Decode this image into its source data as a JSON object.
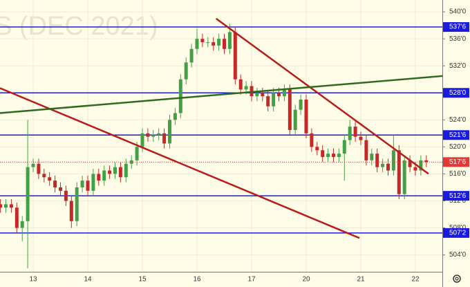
{
  "chart_data": {
    "type": "candlestick",
    "watermark": "S (DEC 2021)",
    "categories": [
      null,
      null,
      null,
      null,
      null,
      null,
      "13",
      null,
      null,
      null,
      null,
      null,
      null,
      null,
      null,
      null,
      "14",
      null,
      null,
      null,
      null,
      null,
      null,
      null,
      null,
      null,
      "15",
      null,
      null,
      null,
      null,
      null,
      null,
      null,
      null,
      null,
      "16",
      null,
      null,
      null,
      null,
      null,
      null,
      null,
      null,
      null,
      "17",
      null,
      null,
      null,
      null,
      null,
      null,
      null,
      null,
      null,
      "20",
      null,
      null,
      null,
      null,
      null,
      null,
      null,
      null,
      null,
      "21",
      null,
      null,
      null,
      null,
      null,
      null,
      null,
      null,
      null,
      "22",
      null,
      null
    ],
    "open": [
      511.5,
      511,
      511.5,
      511,
      508,
      509,
      517,
      517.5,
      516,
      515.5,
      515,
      514,
      513.5,
      512,
      509,
      514,
      515,
      513.5,
      516,
      515,
      516.5,
      516,
      517,
      515.5,
      517.5,
      518,
      520,
      522,
      521.5,
      521.75,
      522,
      520.5,
      524,
      525,
      530,
      532.5,
      534.5,
      536,
      535.5,
      535.5,
      535,
      536,
      534.5,
      537,
      530,
      528.5,
      529,
      527.5,
      528,
      527.5,
      526,
      528,
      527.5,
      528.5,
      522.5,
      525.5,
      527,
      522,
      520,
      519.5,
      518.5,
      519,
      518.5,
      519,
      521,
      523,
      521.5,
      521,
      518,
      519,
      517,
      517.5,
      516.5,
      519.5,
      513,
      518,
      517,
      516.5,
      518
    ],
    "high": [
      512.25,
      512.25,
      512.25,
      511.75,
      509.75,
      524,
      518.25,
      518.25,
      516.75,
      516.25,
      515.75,
      514.75,
      514.25,
      512.75,
      514.75,
      515.75,
      515.75,
      516.75,
      516.75,
      517.25,
      517.25,
      517.75,
      517.75,
      518.25,
      518.75,
      520.75,
      522.75,
      522.75,
      522.5,
      522.75,
      522.75,
      524.75,
      525.75,
      530.75,
      533.25,
      535.25,
      537.5,
      536.75,
      536.25,
      536.25,
      536.75,
      536.75,
      538.25,
      537.75,
      530.75,
      529.75,
      529.75,
      528.75,
      528.75,
      528.25,
      528.75,
      528.75,
      529.25,
      529.25,
      526.25,
      527.75,
      527.75,
      522.75,
      520.75,
      520.25,
      519.75,
      519.75,
      519.75,
      521.75,
      524,
      523.75,
      522.25,
      521.75,
      519.75,
      519.75,
      518.25,
      518.25,
      521.75,
      520.25,
      518.75,
      518.75,
      517.75,
      518.75,
      518.75
    ],
    "low": [
      510.25,
      510.25,
      510.25,
      507.25,
      506,
      502,
      516.25,
      515.25,
      514.75,
      514.25,
      513.25,
      512.75,
      511.25,
      508,
      508.25,
      513.25,
      512.75,
      512.75,
      514.25,
      514.25,
      515.25,
      515.25,
      514.75,
      514.75,
      516.75,
      517.25,
      519.25,
      520.75,
      520.75,
      521,
      519.75,
      519.75,
      523.25,
      524.25,
      529.25,
      531.75,
      533.75,
      534.75,
      534.75,
      534.25,
      534.25,
      533.75,
      533.75,
      529.25,
      527.75,
      527.75,
      526.75,
      526.75,
      526.75,
      525.25,
      525.25,
      526.75,
      526.75,
      521.75,
      521.75,
      524.75,
      521.25,
      519.25,
      518.75,
      517.75,
      517.75,
      517.75,
      517.75,
      515,
      520.25,
      520.75,
      520.25,
      517.25,
      517.25,
      516.25,
      516.25,
      515.75,
      515.75,
      512.25,
      512.25,
      516.25,
      515.75,
      515.75,
      517
    ],
    "close": [
      511,
      511.5,
      511,
      508,
      509,
      517,
      517.5,
      516,
      515.5,
      515,
      514,
      513.5,
      512,
      509,
      514,
      515,
      513.5,
      516,
      515,
      516.5,
      516,
      517,
      515.5,
      517.5,
      518,
      520,
      522,
      521.5,
      521.75,
      522,
      520.5,
      524,
      525,
      530,
      532.5,
      534.5,
      536,
      535.5,
      535.5,
      535,
      536,
      534.5,
      537,
      530,
      528.5,
      529,
      527.5,
      528,
      527.5,
      526,
      528,
      527.5,
      528.5,
      522.5,
      525.5,
      527,
      522,
      520,
      519.5,
      518.5,
      519,
      518.5,
      519,
      521,
      523,
      521.5,
      521,
      518,
      519,
      517,
      517.5,
      516.5,
      519.5,
      513,
      518,
      517,
      516.5,
      518,
      517.75
    ],
    "up_color": "#43a047",
    "down_color": "#c62828",
    "ylim": [
      501.5,
      541.75
    ],
    "yticks": [
      {
        "value": 504,
        "label": "504'0"
      },
      {
        "value": 508,
        "label": "508'0"
      },
      {
        "value": 512,
        "label": "512'0"
      },
      {
        "value": 516,
        "label": "516'0"
      },
      {
        "value": 520,
        "label": "520'0"
      },
      {
        "value": 524,
        "label": "524'0"
      },
      {
        "value": 528,
        "label": "528'0"
      },
      {
        "value": 532,
        "label": "532'0"
      },
      {
        "value": 536,
        "label": "536'0"
      },
      {
        "value": 540,
        "label": "540'0"
      }
    ],
    "grid": true,
    "level_color": "#1b1be0",
    "levels": [
      {
        "value": 537.75,
        "label": "537'6"
      },
      {
        "value": 528,
        "label": "528'0"
      },
      {
        "value": 521.75,
        "label": "521'6"
      },
      {
        "value": 512.75,
        "label": "512'6"
      },
      {
        "value": 507.25,
        "label": "507'2"
      }
    ],
    "last_price": {
      "value": 517.75,
      "label": "517'6",
      "color": "#e53935"
    },
    "trend_lines": [
      {
        "color": "#b71c1c",
        "x": [
          -0.08,
          65.75
        ],
        "y": [
          528.7,
          506.5
        ]
      },
      {
        "color": "#b71c1c",
        "x": [
          39.5,
          78.4
        ],
        "y": [
          539,
          516
        ]
      },
      {
        "color": "#2e6b1e",
        "x": [
          -0.08,
          81
        ],
        "y": [
          525,
          530.5
        ]
      }
    ]
  }
}
